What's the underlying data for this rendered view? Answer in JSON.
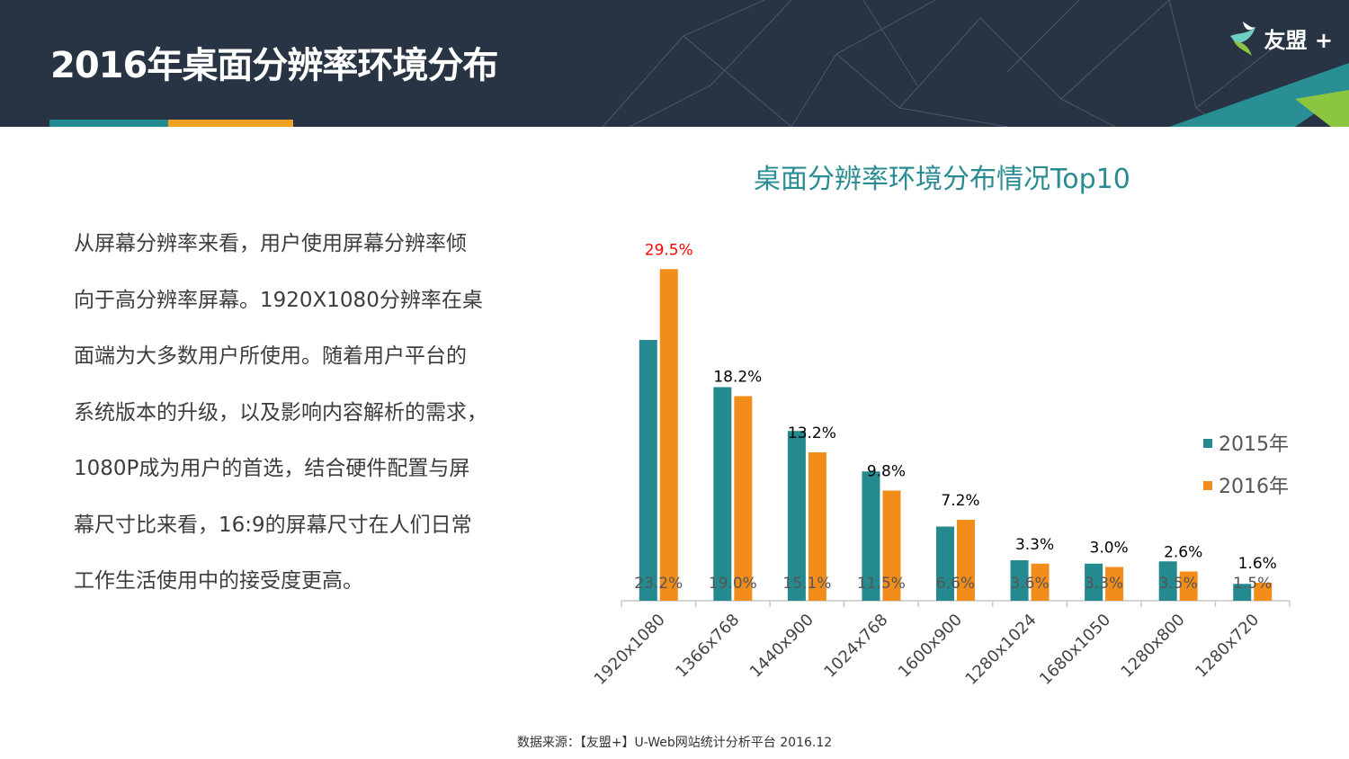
{
  "header": {
    "title": "2016年桌面分辨率环境分布",
    "logo_text": "友盟 +"
  },
  "body_text": [
    "从屏幕分辨率来看，用户使用屏幕分辨率倾",
    "向于高分辨率屏幕。1920X1080分辨率在桌",
    "面端为大多数用户所使用。随着用户平台的",
    "系统版本的升级，以及影响内容解析的需求，",
    "1080P成为用户的首选，结合硬件配置与屏",
    "幕尺寸比来看，16:9的屏幕尺寸在人们日常",
    "工作生活使用中的接受度更高。"
  ],
  "chart_data": {
    "type": "bar",
    "title": "桌面分辨率环境分布情况Top10",
    "categories": [
      "1920x1080",
      "1366x768",
      "1440x900",
      "1024x768",
      "1600x900",
      "1280x1024",
      "1680x1050",
      "1280x800",
      "1280x720"
    ],
    "series": [
      {
        "name": "2015年",
        "color": "#248a8f",
        "values": [
          23.2,
          19.0,
          15.1,
          11.5,
          6.6,
          3.6,
          3.3,
          3.5,
          1.5
        ],
        "labels": [
          "23.2%",
          "19.0%",
          "15.1%",
          "11.5%",
          "6.6%",
          "3.6%",
          "3.3%",
          "3.5%",
          "1.5%"
        ]
      },
      {
        "name": "2016年",
        "color": "#f28c1a",
        "values": [
          29.5,
          18.2,
          13.2,
          9.8,
          7.2,
          3.3,
          3.0,
          2.6,
          1.6
        ],
        "labels": [
          "29.5%",
          "18.2%",
          "13.2%",
          "9.8%",
          "7.2%",
          "3.3%",
          "3.0%",
          "2.6%",
          "1.6%"
        ]
      }
    ],
    "highlight_color": "#ff0000",
    "ylim": [
      0,
      30
    ],
    "legend": "right",
    "xlabel": "",
    "ylabel": ""
  },
  "source": "数据来源：【友盟+】U-Web网站统计分析平台 2016.12"
}
